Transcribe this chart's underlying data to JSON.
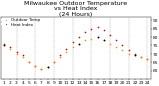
{
  "title": "Milwaukee Outdoor Temperature\nvs Heat Index\n(24 Hours)",
  "temp": [
    75,
    73,
    70,
    68,
    65,
    63,
    61,
    62,
    65,
    68,
    71,
    74,
    76,
    78,
    79,
    80,
    78,
    76,
    74,
    72,
    70,
    69,
    68,
    67
  ],
  "heat_index": [
    76,
    74,
    71,
    69,
    65,
    63,
    61,
    62,
    65,
    69,
    73,
    77,
    80,
    83,
    85,
    86,
    84,
    81,
    78,
    75,
    72,
    70,
    68,
    67
  ],
  "x": [
    1,
    2,
    3,
    4,
    5,
    6,
    7,
    8,
    9,
    10,
    11,
    12,
    13,
    14,
    15,
    16,
    17,
    18,
    19,
    20,
    21,
    22,
    23,
    24
  ],
  "temp_color": "#FF8C00",
  "heat_color": "#CC0000",
  "black_color": "#000000",
  "bg_color": "#ffffff",
  "grid_color": "#888888",
  "ylim": [
    55,
    92
  ],
  "ytick_vals": [
    60,
    65,
    70,
    75,
    80,
    85,
    90
  ],
  "ytick_labels": [
    "60",
    "65",
    "70",
    "75",
    "80",
    "85",
    "90"
  ],
  "grid_positions": [
    3,
    6,
    9,
    12,
    15,
    18,
    21,
    24
  ],
  "title_fontsize": 4.5,
  "tick_fontsize": 3.2,
  "legend_fontsize": 3.0,
  "marker_size": 1.4
}
